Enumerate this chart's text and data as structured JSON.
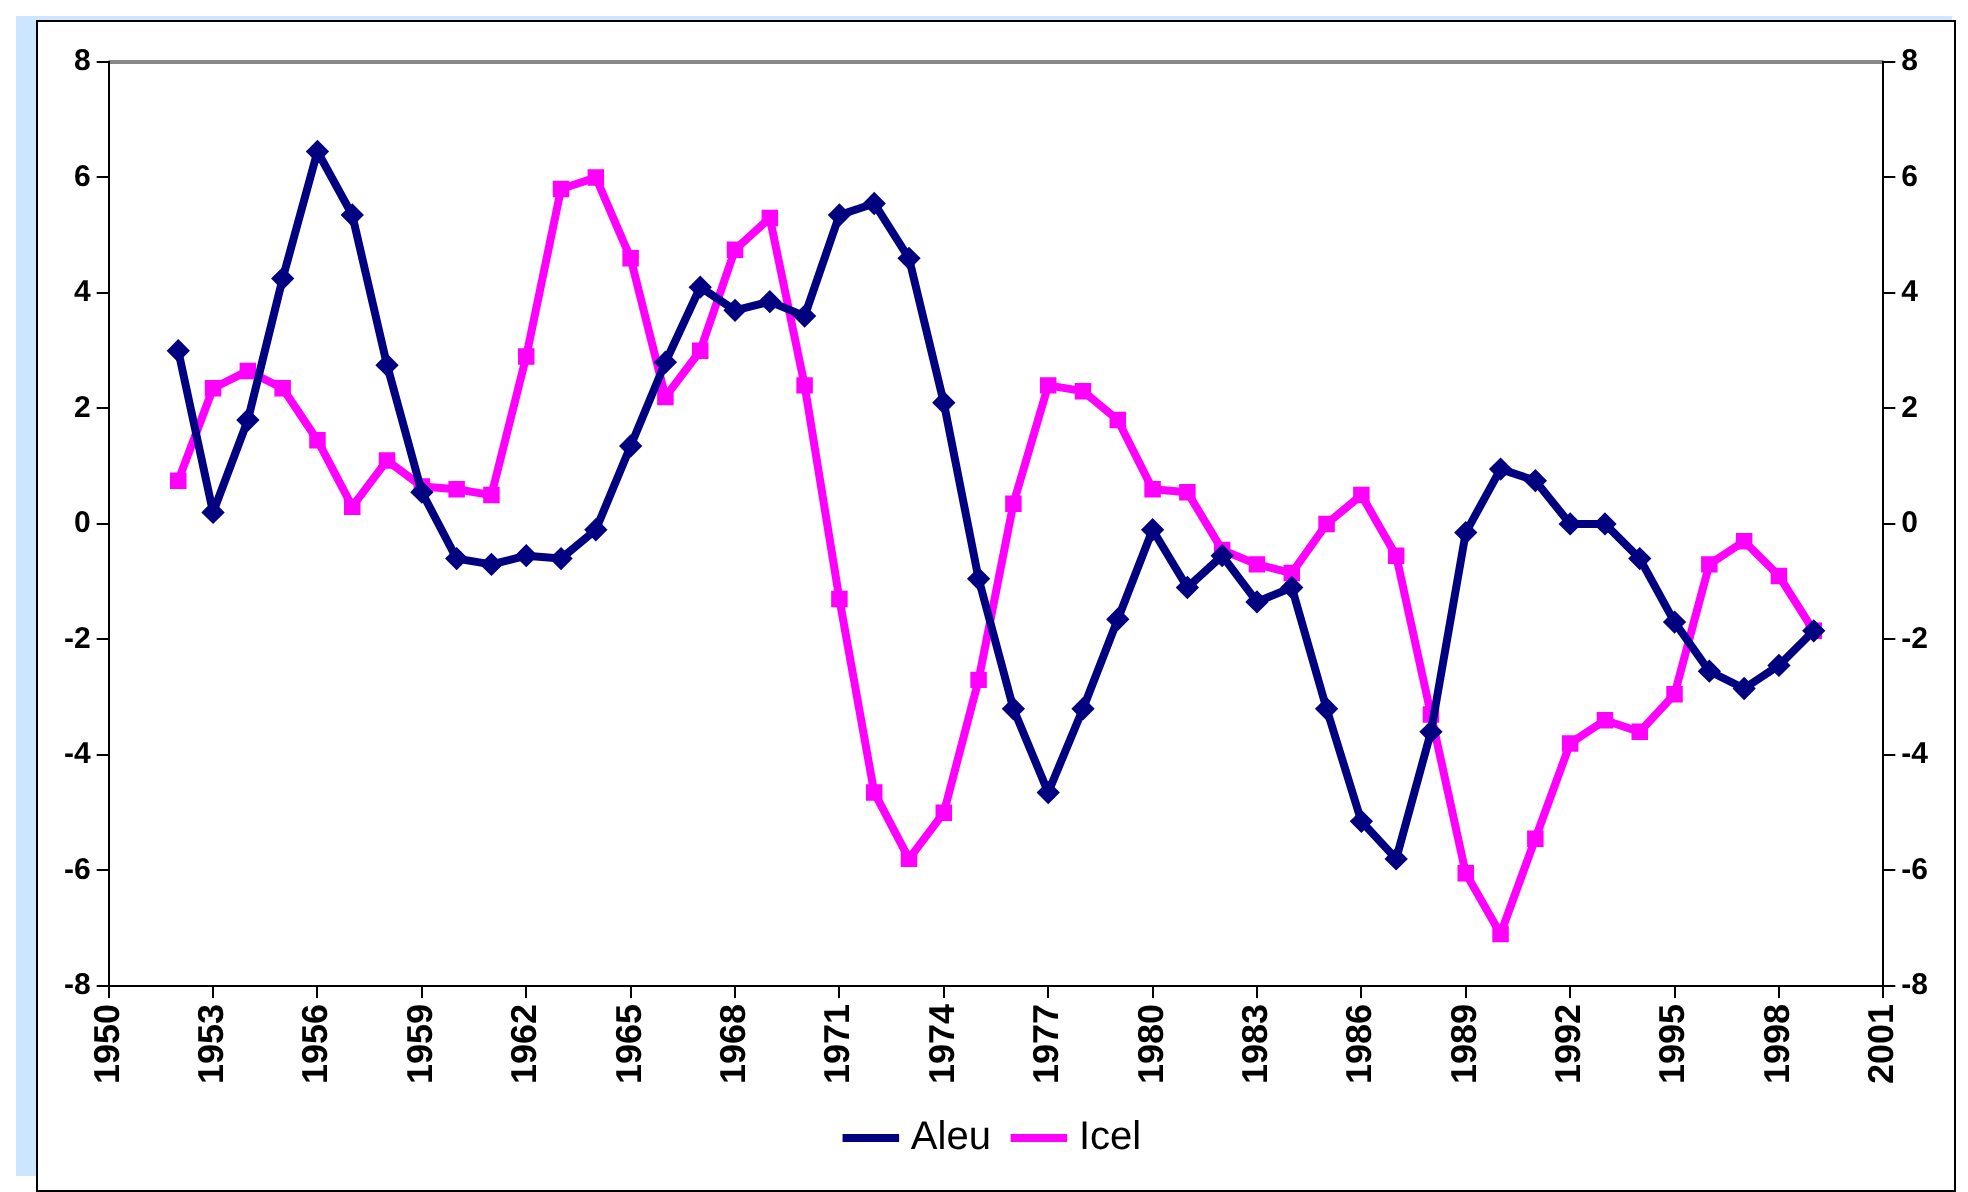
{
  "chart_data": {
    "type": "line",
    "x": [
      1952,
      1953,
      1954,
      1955,
      1956,
      1957,
      1958,
      1959,
      1960,
      1961,
      1962,
      1963,
      1964,
      1965,
      1966,
      1967,
      1968,
      1969,
      1970,
      1971,
      1972,
      1973,
      1974,
      1975,
      1976,
      1977,
      1978,
      1979,
      1980,
      1981,
      1982,
      1983,
      1984,
      1985,
      1986,
      1987,
      1988,
      1989,
      1990,
      1991,
      1992,
      1993,
      1994,
      1995,
      1996,
      1997,
      1998,
      1999
    ],
    "series": [
      {
        "name": "Icel",
        "color": "#ff00ff",
        "marker": "square",
        "values": [
          0.75,
          2.35,
          2.65,
          2.35,
          1.45,
          0.3,
          1.1,
          0.65,
          0.6,
          0.5,
          2.9,
          5.8,
          6.0,
          4.6,
          2.2,
          3.0,
          4.75,
          5.3,
          2.4,
          -1.3,
          -4.65,
          -5.8,
          -5.0,
          -2.7,
          0.35,
          2.4,
          2.3,
          1.8,
          0.6,
          0.55,
          -0.45,
          -0.7,
          -0.85,
          0.0,
          0.5,
          -0.55,
          -3.3,
          -6.05,
          -7.1,
          -5.45,
          -3.8,
          -3.4,
          -3.6,
          -2.95,
          -0.7,
          -0.3,
          -0.9,
          -1.85
        ]
      },
      {
        "name": "Aleu",
        "color": "#000080",
        "marker": "diamond",
        "values": [
          3.0,
          0.2,
          1.8,
          4.25,
          6.45,
          5.35,
          2.75,
          0.55,
          -0.6,
          -0.7,
          -0.55,
          -0.6,
          -0.1,
          1.35,
          2.8,
          4.1,
          3.7,
          3.85,
          3.6,
          5.35,
          5.55,
          4.6,
          2.1,
          -0.95,
          -3.2,
          -4.65,
          -3.2,
          -1.65,
          -0.1,
          -1.1,
          -0.55,
          -1.35,
          -1.1,
          -3.2,
          -5.15,
          -5.8,
          -3.6,
          -0.15,
          0.95,
          0.75,
          0.0,
          0.0,
          -0.6,
          -1.7,
          -2.55,
          -2.85,
          -2.45,
          -1.85
        ]
      }
    ],
    "xlim": [
      1950,
      2001
    ],
    "xticks": [
      1950,
      1953,
      1956,
      1959,
      1962,
      1965,
      1968,
      1971,
      1974,
      1977,
      1980,
      1983,
      1986,
      1989,
      1992,
      1995,
      1998,
      2001
    ],
    "ylim": [
      -8,
      8
    ],
    "yticks": [
      -8,
      -6,
      -4,
      -2,
      0,
      2,
      4,
      6,
      8
    ],
    "y2lim": [
      -8,
      8
    ],
    "y2ticks": [
      -8,
      -6,
      -4,
      -2,
      0,
      2,
      4,
      6,
      8
    ],
    "grid": false,
    "legend": "bottom",
    "line_style": "solid"
  }
}
